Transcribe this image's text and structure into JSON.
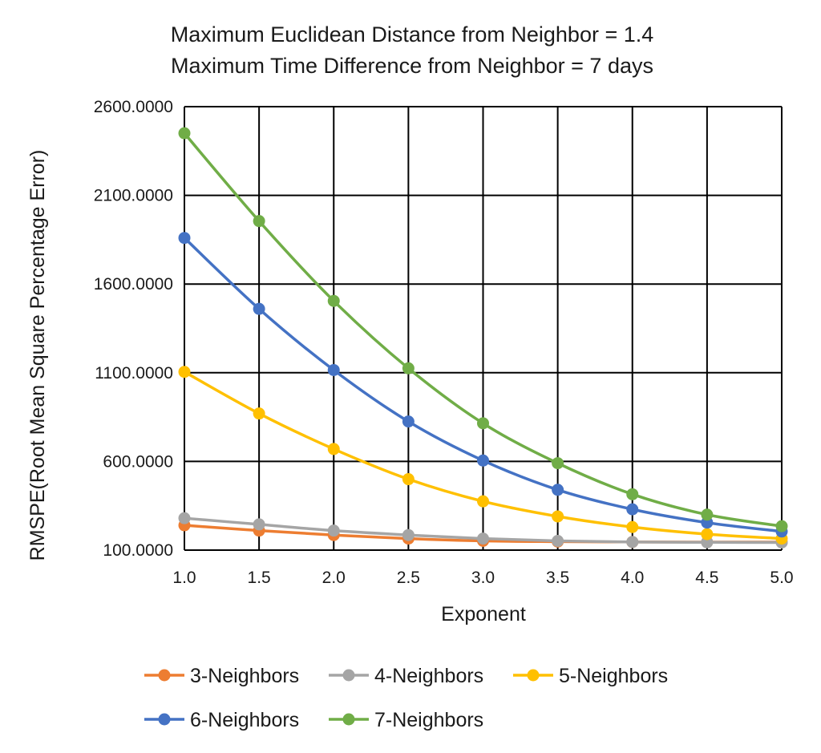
{
  "chart_data": {
    "type": "line",
    "title": "Maximum Euclidean Distance from Neighbor = 1.4",
    "subtitle": "Maximum Time Difference from Neighbor = 7 days",
    "xlabel": "Exponent",
    "ylabel": "RMSPE(Root Mean Square Percentage Error)",
    "x": [
      1.0,
      1.5,
      2.0,
      2.5,
      3.0,
      3.5,
      4.0,
      4.5,
      5.0
    ],
    "x_tick_labels": [
      "1.0",
      "1.5",
      "2.0",
      "2.5",
      "3.0",
      "3.5",
      "4.0",
      "4.5",
      "5.0"
    ],
    "y_tick_values": [
      100,
      600,
      1100,
      1600,
      2100,
      2600
    ],
    "y_tick_labels": [
      "100.0000",
      "600.0000",
      "1100.0000",
      "1600.0000",
      "2100.0000",
      "2600.0000"
    ],
    "ylim": [
      100,
      2600
    ],
    "xlim": [
      1.0,
      5.0
    ],
    "grid": true,
    "legend_position": "bottom",
    "series": [
      {
        "name": "3-Neighbors",
        "color": "#ED7D31",
        "values": [
          240,
          210,
          185,
          165,
          152,
          148,
          146,
          145,
          145
        ]
      },
      {
        "name": "4-Neighbors",
        "color": "#A5A5A5",
        "values": [
          280,
          245,
          210,
          185,
          165,
          152,
          146,
          144,
          143
        ]
      },
      {
        "name": "5-Neighbors",
        "color": "#FFC000",
        "values": [
          1105,
          870,
          670,
          500,
          375,
          290,
          230,
          190,
          165
        ]
      },
      {
        "name": "6-Neighbors",
        "color": "#4472C4",
        "values": [
          1860,
          1460,
          1115,
          825,
          605,
          440,
          330,
          255,
          205
        ]
      },
      {
        "name": "7-Neighbors",
        "color": "#70AD47",
        "values": [
          2450,
          1955,
          1505,
          1125,
          815,
          590,
          415,
          300,
          235
        ]
      }
    ]
  }
}
